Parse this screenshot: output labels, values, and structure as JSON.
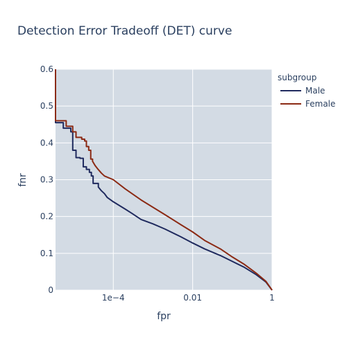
{
  "chart_data": {
    "type": "line",
    "title": "Detection Error Tradeoff (DET) curve",
    "xlabel": "fpr",
    "ylabel": "fnr",
    "x_scale": "log",
    "xlim": [
      3.5e-06,
      1
    ],
    "ylim": [
      0,
      0.6
    ],
    "x_ticks": [
      {
        "value": 0.0001,
        "label": "1e−4"
      },
      {
        "value": 0.01,
        "label": "0.01"
      },
      {
        "value": 1,
        "label": "1"
      }
    ],
    "y_ticks": [
      {
        "value": 0,
        "label": "0"
      },
      {
        "value": 0.1,
        "label": "0.1"
      },
      {
        "value": 0.2,
        "label": "0.2"
      },
      {
        "value": 0.3,
        "label": "0.3"
      },
      {
        "value": 0.4,
        "label": "0.4"
      },
      {
        "value": 0.5,
        "label": "0.5"
      },
      {
        "value": 0.6,
        "label": "0.6"
      }
    ],
    "grid": true,
    "legend": {
      "title": "subgroup",
      "position": "right"
    },
    "background_color": "#d3dbe4",
    "series": [
      {
        "name": "Male",
        "color": "#1f2a5e",
        "points": [
          [
            3.5e-06,
            0.6
          ],
          [
            3.5e-06,
            0.455
          ],
          [
            5.5e-06,
            0.455
          ],
          [
            5.5e-06,
            0.44
          ],
          [
            8.5e-06,
            0.44
          ],
          [
            8.5e-06,
            0.43
          ],
          [
            9.5e-06,
            0.43
          ],
          [
            9.5e-06,
            0.38
          ],
          [
            1.15e-05,
            0.38
          ],
          [
            1.15e-05,
            0.36
          ],
          [
            1.45e-05,
            0.36
          ],
          [
            1.45e-05,
            0.358
          ],
          [
            1.75e-05,
            0.358
          ],
          [
            1.75e-05,
            0.335
          ],
          [
            2.1e-05,
            0.335
          ],
          [
            2.1e-05,
            0.328
          ],
          [
            2.5e-05,
            0.328
          ],
          [
            2.5e-05,
            0.32
          ],
          [
            2.8e-05,
            0.32
          ],
          [
            2.8e-05,
            0.31
          ],
          [
            3.1e-05,
            0.31
          ],
          [
            3.1e-05,
            0.29
          ],
          [
            4.2e-05,
            0.29
          ],
          [
            4.2e-05,
            0.28
          ],
          [
            5e-05,
            0.27
          ],
          [
            6e-05,
            0.262
          ],
          [
            7e-05,
            0.252
          ],
          [
            0.0001,
            0.24
          ],
          [
            0.0002,
            0.22
          ],
          [
            0.0003,
            0.208
          ],
          [
            0.0005,
            0.192
          ],
          [
            0.001,
            0.18
          ],
          [
            0.002,
            0.166
          ],
          [
            0.005,
            0.145
          ],
          [
            0.01,
            0.128
          ],
          [
            0.02,
            0.112
          ],
          [
            0.05,
            0.094
          ],
          [
            0.1,
            0.078
          ],
          [
            0.2,
            0.062
          ],
          [
            0.4,
            0.042
          ],
          [
            0.7,
            0.022
          ],
          [
            1,
            0
          ]
        ]
      },
      {
        "name": "Female",
        "color": "#8b2a14",
        "points": [
          [
            3.5e-06,
            0.6
          ],
          [
            3.5e-06,
            0.46
          ],
          [
            6.5e-06,
            0.46
          ],
          [
            6.5e-06,
            0.445
          ],
          [
            9.5e-06,
            0.445
          ],
          [
            9.5e-06,
            0.43
          ],
          [
            1.15e-05,
            0.43
          ],
          [
            1.15e-05,
            0.415
          ],
          [
            1.6e-05,
            0.415
          ],
          [
            1.6e-05,
            0.41
          ],
          [
            1.9e-05,
            0.41
          ],
          [
            1.9e-05,
            0.405
          ],
          [
            2.1e-05,
            0.405
          ],
          [
            2.1e-05,
            0.39
          ],
          [
            2.4e-05,
            0.39
          ],
          [
            2.4e-05,
            0.38
          ],
          [
            2.7e-05,
            0.38
          ],
          [
            2.7e-05,
            0.356
          ],
          [
            3e-05,
            0.356
          ],
          [
            3e-05,
            0.35
          ],
          [
            3.5e-05,
            0.338
          ],
          [
            4e-05,
            0.33
          ],
          [
            5e-05,
            0.318
          ],
          [
            6e-05,
            0.31
          ],
          [
            0.0001,
            0.3
          ],
          [
            0.0002,
            0.275
          ],
          [
            0.0005,
            0.245
          ],
          [
            0.001,
            0.225
          ],
          [
            0.002,
            0.205
          ],
          [
            0.005,
            0.178
          ],
          [
            0.01,
            0.158
          ],
          [
            0.02,
            0.135
          ],
          [
            0.05,
            0.112
          ],
          [
            0.1,
            0.09
          ],
          [
            0.2,
            0.07
          ],
          [
            0.4,
            0.046
          ],
          [
            0.7,
            0.024
          ],
          [
            1,
            0
          ]
        ]
      }
    ]
  }
}
